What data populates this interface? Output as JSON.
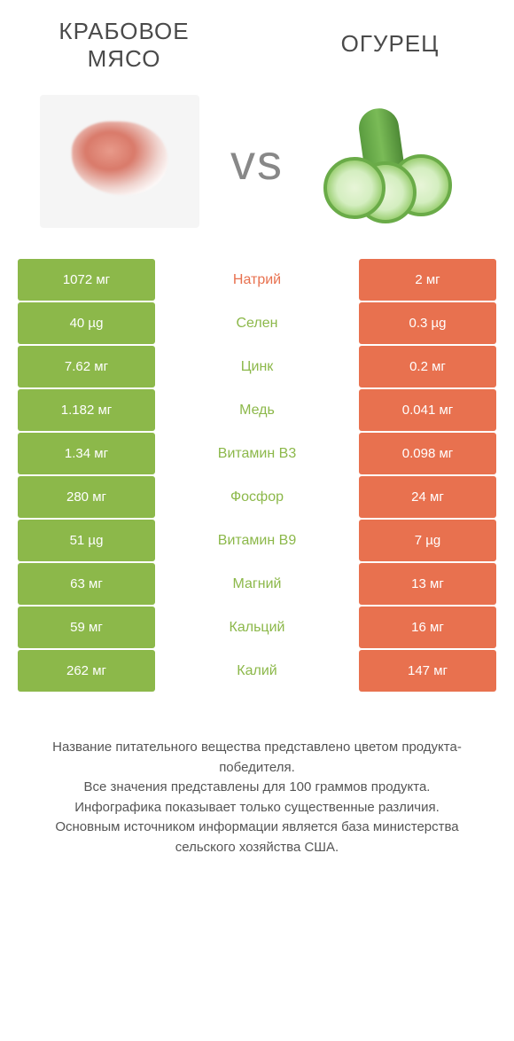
{
  "header": {
    "left_title_line1": "Крабовое",
    "left_title_line2": "мясо",
    "right_title": "Огурец",
    "vs_label": "vs"
  },
  "colors": {
    "green": "#8cb84a",
    "orange": "#e8714f",
    "bg": "#ffffff",
    "text": "#4a4a4a"
  },
  "table": {
    "left_color": "green",
    "right_color": "orange",
    "rows": [
      {
        "left": "1072 мг",
        "mid": "Натрий",
        "winner": "orange",
        "right": "2 мг"
      },
      {
        "left": "40 µg",
        "mid": "Селен",
        "winner": "green",
        "right": "0.3 µg"
      },
      {
        "left": "7.62 мг",
        "mid": "Цинк",
        "winner": "green",
        "right": "0.2 мг"
      },
      {
        "left": "1.182 мг",
        "mid": "Медь",
        "winner": "green",
        "right": "0.041 мг"
      },
      {
        "left": "1.34 мг",
        "mid": "Витамин B3",
        "winner": "green",
        "right": "0.098 мг"
      },
      {
        "left": "280 мг",
        "mid": "Фосфор",
        "winner": "green",
        "right": "24 мг"
      },
      {
        "left": "51 µg",
        "mid": "Витамин B9",
        "winner": "green",
        "right": "7 µg"
      },
      {
        "left": "63 мг",
        "mid": "Магний",
        "winner": "green",
        "right": "13 мг"
      },
      {
        "left": "59 мг",
        "mid": "Кальций",
        "winner": "green",
        "right": "16 мг"
      },
      {
        "left": "262 мг",
        "mid": "Калий",
        "winner": "green",
        "right": "147 мг"
      }
    ]
  },
  "footer": {
    "line1": "Название питательного вещества представлено цветом продукта-победителя.",
    "line2": "Все значения представлены для 100 граммов продукта.",
    "line3": "Инфографика показывает только существенные различия.",
    "line4": "Основным источником информации является база министерства сельского хозяйства США."
  }
}
